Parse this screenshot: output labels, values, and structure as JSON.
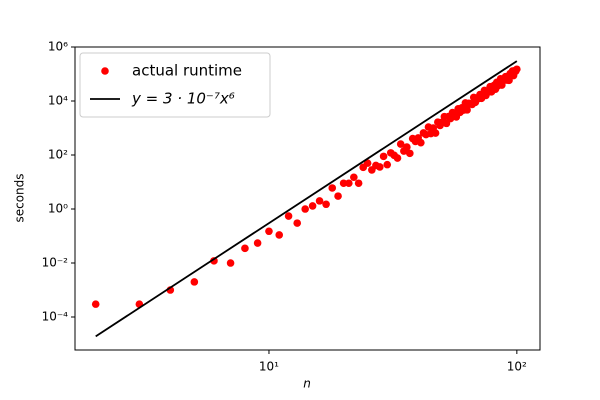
{
  "chart_data": {
    "type": "scatter",
    "xlabel": "n",
    "ylabel": "seconds",
    "xscale": "log",
    "yscale": "log",
    "xlim": [
      1.65,
      124
    ],
    "ylim": [
      6e-06,
      1000000.0
    ],
    "xticks": [
      {
        "value": 10,
        "label": "10¹"
      },
      {
        "value": 100,
        "label": "10²"
      }
    ],
    "yticks": [
      {
        "value": 0.0001,
        "label": "10⁻⁴"
      },
      {
        "value": 0.01,
        "label": "10⁻²"
      },
      {
        "value": 1,
        "label": "10⁰"
      },
      {
        "value": 100,
        "label": "10²"
      },
      {
        "value": 10000,
        "label": "10⁴"
      },
      {
        "value": 1000000,
        "label": "10⁶"
      }
    ],
    "legend": "upper left",
    "series": [
      {
        "name": "actual runtime",
        "mode": "markers",
        "color": "#ff0000",
        "x": [
          2,
          3,
          4,
          5,
          6,
          7,
          8,
          9,
          10,
          11,
          12,
          13,
          14,
          15,
          16,
          17,
          18,
          19,
          20,
          21,
          22,
          23,
          24,
          25,
          26,
          27,
          28,
          29,
          30,
          31,
          32,
          33,
          34,
          35,
          36,
          37,
          38,
          39,
          40,
          41,
          42,
          43,
          44,
          45,
          46,
          47,
          48,
          49,
          50,
          51,
          52,
          53,
          54,
          55,
          56,
          57,
          58,
          59,
          60,
          61,
          62,
          63,
          64,
          65,
          66,
          67,
          68,
          69,
          70,
          71,
          72,
          73,
          74,
          75,
          76,
          77,
          78,
          79,
          80,
          81,
          82,
          83,
          84,
          85,
          86,
          87,
          88,
          89,
          90,
          91,
          92,
          93,
          94,
          95,
          96,
          97,
          98,
          99,
          100
        ],
        "values": [
          0.0003,
          0.0003,
          0.001,
          0.002,
          0.012,
          0.01,
          0.035,
          0.055,
          0.15,
          0.11,
          0.55,
          0.3,
          1.0,
          1.3,
          2.0,
          1.5,
          6,
          3,
          9,
          9,
          15,
          9,
          35,
          50,
          28,
          41,
          36,
          89,
          44,
          120,
          97,
          77,
          255,
          140,
          196,
          115,
          406,
          317,
          430,
          285,
          659,
          569,
          1089,
          623,
          995,
          647,
          1651,
          1246,
          1641,
          2640,
          1483,
          2660,
          2231,
          3737,
          3238,
          2572,
          5139,
          3796,
          5599,
          4637,
          8520,
          4689,
          8246,
          7919,
          7439,
          13569,
          8898,
          12950,
          12353,
          17294,
          12538,
          18160,
          24631,
          16018,
          23124,
          21884,
          33780,
          21878,
          31457,
          38128,
          27298,
          49041,
          36886,
          45258,
          66754,
          39026,
          62694,
          59638,
          79716,
          59626,
          81858,
          58229,
          103481,
          88211,
          129155,
          87462,
          132877,
          127100,
          150000
        ]
      },
      {
        "name": "y = 3 · 10⁻⁷x⁶",
        "mode": "lines",
        "color": "#000000",
        "x": [
          2,
          100
        ],
        "values": [
          1.92e-05,
          300000
        ]
      }
    ]
  }
}
